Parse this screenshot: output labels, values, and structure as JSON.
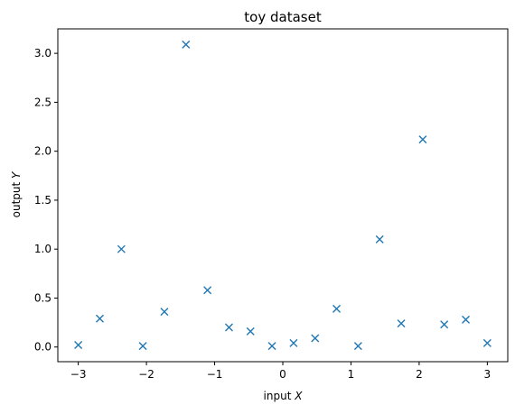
{
  "chart_data": {
    "type": "scatter",
    "title": "toy dataset",
    "xlabel_prefix": "input ",
    "xlabel_var": "X",
    "ylabel_prefix": "output ",
    "ylabel_var": "Y",
    "xlim": [
      -3.3,
      3.3
    ],
    "ylim": [
      -0.15,
      3.25
    ],
    "xticks": [
      -3,
      -2,
      -1,
      0,
      1,
      2,
      3
    ],
    "xtick_labels": [
      "−3",
      "−2",
      "−1",
      "0",
      "1",
      "2",
      "3"
    ],
    "yticks": [
      0.0,
      0.5,
      1.0,
      1.5,
      2.0,
      2.5,
      3.0
    ],
    "ytick_labels": [
      "0.0",
      "0.5",
      "1.0",
      "1.5",
      "2.0",
      "2.5",
      "3.0"
    ],
    "grid": false,
    "marker": "x",
    "color": "#1f77b4",
    "x": [
      -3.0,
      -2.684,
      -2.368,
      -2.053,
      -1.737,
      -1.421,
      -1.105,
      -0.789,
      -0.474,
      -0.158,
      0.158,
      0.474,
      0.789,
      1.105,
      1.421,
      1.737,
      2.053,
      2.368,
      2.684,
      3.0
    ],
    "y": [
      0.02,
      0.29,
      1.0,
      0.01,
      0.36,
      3.09,
      0.58,
      0.2,
      0.16,
      0.01,
      0.04,
      0.09,
      0.39,
      0.01,
      1.1,
      0.24,
      2.12,
      0.23,
      0.28,
      0.04
    ]
  }
}
